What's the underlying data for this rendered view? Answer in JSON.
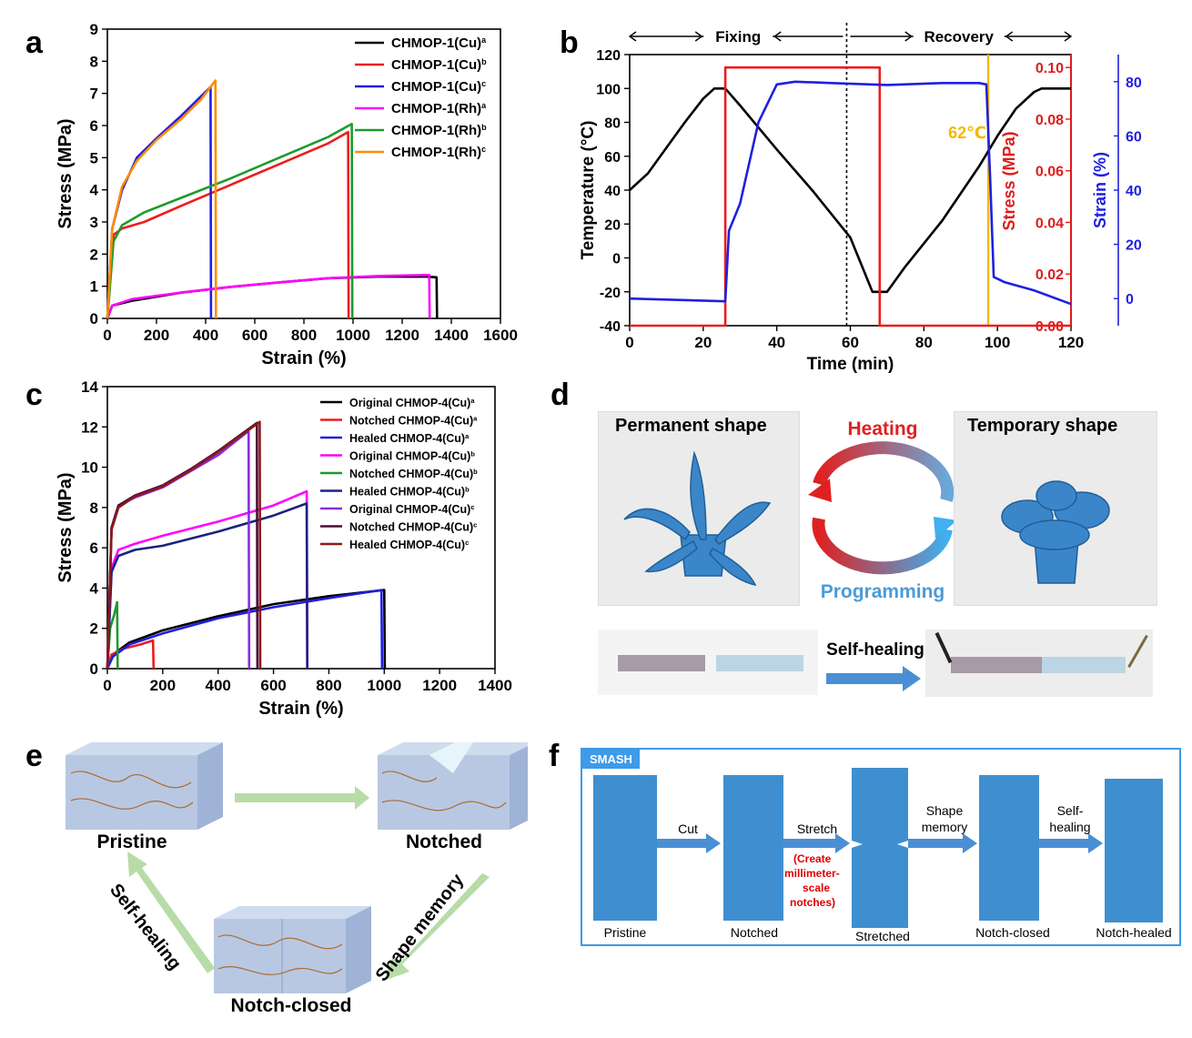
{
  "panels": {
    "a": "a",
    "b": "b",
    "c": "c",
    "d": "d",
    "e": "e",
    "f": "f"
  },
  "chart_data": [
    {
      "id": "a",
      "type": "line",
      "xlabel": "Strain (%)",
      "ylabel": "Stress (MPa)",
      "xlim": [
        0,
        1600
      ],
      "ylim": [
        0,
        9
      ],
      "xticks": [
        0,
        200,
        400,
        600,
        800,
        1000,
        1200,
        1400,
        1600
      ],
      "yticks": [
        0,
        1,
        2,
        3,
        4,
        5,
        6,
        7,
        8,
        9
      ],
      "legend_position": "top-right",
      "series": [
        {
          "name": "CHMOP-1(Cu)",
          "sup": "a",
          "color": "#000000",
          "points": [
            [
              0,
              0
            ],
            [
              20,
              0.4
            ],
            [
              100,
              0.55
            ],
            [
              300,
              0.8
            ],
            [
              500,
              0.98
            ],
            [
              700,
              1.12
            ],
            [
              900,
              1.25
            ],
            [
              1100,
              1.3
            ],
            [
              1300,
              1.3
            ],
            [
              1340,
              1.28
            ],
            [
              1342,
              0
            ]
          ]
        },
        {
          "name": "CHMOP-1(Cu)",
          "sup": "b",
          "color": "#ee1c1c",
          "points": [
            [
              0,
              0
            ],
            [
              25,
              2.6
            ],
            [
              60,
              2.8
            ],
            [
              150,
              3.0
            ],
            [
              300,
              3.5
            ],
            [
              500,
              4.15
            ],
            [
              700,
              4.8
            ],
            [
              900,
              5.45
            ],
            [
              980,
              5.8
            ],
            [
              982,
              0
            ]
          ]
        },
        {
          "name": "CHMOP-1(Cu)",
          "sup": "c",
          "color": "#1f1fe0",
          "points": [
            [
              0,
              0
            ],
            [
              20,
              2.8
            ],
            [
              60,
              4.0
            ],
            [
              120,
              5.0
            ],
            [
              200,
              5.6
            ],
            [
              300,
              6.3
            ],
            [
              380,
              6.9
            ],
            [
              420,
              7.2
            ],
            [
              422,
              0
            ]
          ]
        },
        {
          "name": "CHMOP-1(Rh)",
          "sup": "a",
          "color": "#ff00ff",
          "points": [
            [
              0,
              0
            ],
            [
              20,
              0.4
            ],
            [
              100,
              0.6
            ],
            [
              300,
              0.8
            ],
            [
              500,
              0.98
            ],
            [
              700,
              1.12
            ],
            [
              900,
              1.25
            ],
            [
              1100,
              1.32
            ],
            [
              1300,
              1.35
            ],
            [
              1310,
              1.35
            ],
            [
              1312,
              0
            ]
          ]
        },
        {
          "name": "CHMOP-1(Rh)",
          "sup": "b",
          "color": "#1e9a2e",
          "points": [
            [
              0,
              0
            ],
            [
              25,
              2.4
            ],
            [
              60,
              2.9
            ],
            [
              150,
              3.3
            ],
            [
              300,
              3.75
            ],
            [
              500,
              4.35
            ],
            [
              700,
              5.0
            ],
            [
              900,
              5.65
            ],
            [
              995,
              6.05
            ],
            [
              997,
              0
            ]
          ]
        },
        {
          "name": "CHMOP-1(Rh)",
          "sup": "c",
          "color": "#ff8c00",
          "points": [
            [
              0,
              0
            ],
            [
              20,
              2.8
            ],
            [
              60,
              4.1
            ],
            [
              120,
              4.9
            ],
            [
              200,
              5.55
            ],
            [
              300,
              6.2
            ],
            [
              380,
              6.8
            ],
            [
              440,
              7.4
            ],
            [
              442,
              0
            ]
          ]
        }
      ]
    },
    {
      "id": "b",
      "type": "line",
      "xlabel": "Time (min)",
      "ylabel": "Temperature (°C)",
      "y2label": "Stress (MPa)",
      "y3label": "Strain (%)",
      "xlim": [
        0,
        120
      ],
      "ylim": [
        -40,
        120
      ],
      "y2lim": [
        0,
        0.105
      ],
      "y3lim": [
        -10,
        90
      ],
      "xticks": [
        0,
        20,
        40,
        60,
        80,
        100,
        120
      ],
      "yticks": [
        -40,
        -20,
        0,
        20,
        40,
        60,
        80,
        100,
        120
      ],
      "y2ticks": [
        0.0,
        0.02,
        0.04,
        0.06,
        0.08,
        0.1
      ],
      "y3ticks": [
        0,
        20,
        40,
        60,
        80
      ],
      "annotations": {
        "fixing": "Fixing",
        "recovery": "Recovery",
        "temp": "62℃"
      },
      "vline_dotted_x": 59,
      "vline_recovery_x": 97.5,
      "series": [
        {
          "name": "Temperature",
          "axis": "y",
          "color": "#000000",
          "points": [
            [
              0,
              40
            ],
            [
              5,
              50
            ],
            [
              10,
              65
            ],
            [
              15,
              80
            ],
            [
              20,
              94
            ],
            [
              23,
              100
            ],
            [
              26,
              100
            ],
            [
              30,
              90
            ],
            [
              40,
              64
            ],
            [
              50,
              39
            ],
            [
              60,
              12
            ],
            [
              66,
              -20
            ],
            [
              70,
              -20
            ],
            [
              75,
              -5
            ],
            [
              85,
              22
            ],
            [
              95,
              54
            ],
            [
              100,
              72
            ],
            [
              105,
              88
            ],
            [
              110,
              98
            ],
            [
              112,
              100
            ],
            [
              120,
              100
            ]
          ]
        },
        {
          "name": "Stress",
          "axis": "y2",
          "color": "#ee1c1c",
          "points": [
            [
              0,
              0.0
            ],
            [
              26,
              0.0
            ],
            [
              26,
              0.1
            ],
            [
              68,
              0.1
            ],
            [
              68,
              0.0
            ],
            [
              120,
              0.0
            ]
          ]
        },
        {
          "name": "Strain",
          "axis": "y3",
          "color": "#1f1fe0",
          "points": [
            [
              0,
              0
            ],
            [
              26,
              -1
            ],
            [
              27,
              25
            ],
            [
              30,
              35
            ],
            [
              35,
              65
            ],
            [
              40,
              79
            ],
            [
              45,
              80
            ],
            [
              55,
              79.5
            ],
            [
              70,
              78.8
            ],
            [
              85,
              79.5
            ],
            [
              95,
              79.5
            ],
            [
              97,
              79
            ],
            [
              98,
              45
            ],
            [
              99,
              8
            ],
            [
              102,
              6
            ],
            [
              110,
              3
            ],
            [
              120,
              -2
            ]
          ]
        }
      ]
    },
    {
      "id": "c",
      "type": "line",
      "xlabel": "Strain (%)",
      "ylabel": "Stress (MPa)",
      "xlim": [
        0,
        1400
      ],
      "ylim": [
        0,
        14
      ],
      "xticks": [
        0,
        200,
        400,
        600,
        800,
        1000,
        1200,
        1400
      ],
      "yticks": [
        0,
        2,
        4,
        6,
        8,
        10,
        12,
        14
      ],
      "legend_position": "top-right",
      "series": [
        {
          "name": "Original CHMOP-4(Cu)",
          "sup": "a",
          "color": "#000000",
          "points": [
            [
              0,
              0
            ],
            [
              20,
              0.7
            ],
            [
              80,
              1.3
            ],
            [
              200,
              1.9
            ],
            [
              400,
              2.6
            ],
            [
              600,
              3.2
            ],
            [
              800,
              3.6
            ],
            [
              1000,
              3.9
            ],
            [
              1002,
              0
            ]
          ]
        },
        {
          "name": "Notched CHMOP-4(Cu)",
          "sup": "a",
          "color": "#ee1c1c",
          "points": [
            [
              0,
              0
            ],
            [
              15,
              0.7
            ],
            [
              60,
              1.0
            ],
            [
              120,
              1.2
            ],
            [
              165,
              1.4
            ],
            [
              167,
              0
            ]
          ]
        },
        {
          "name": "Healed CHMOP-4(Cu)",
          "sup": "a",
          "color": "#1f1fe0",
          "points": [
            [
              0,
              0
            ],
            [
              20,
              0.6
            ],
            [
              80,
              1.2
            ],
            [
              200,
              1.75
            ],
            [
              400,
              2.5
            ],
            [
              600,
              3.05
            ],
            [
              800,
              3.5
            ],
            [
              990,
              3.9
            ],
            [
              992,
              0
            ]
          ]
        },
        {
          "name": "Original CHMOP-4(Cu)",
          "sup": "b",
          "color": "#ff00ff",
          "points": [
            [
              0,
              0
            ],
            [
              15,
              5.0
            ],
            [
              40,
              5.9
            ],
            [
              100,
              6.2
            ],
            [
              200,
              6.6
            ],
            [
              400,
              7.3
            ],
            [
              600,
              8.1
            ],
            [
              720,
              8.8
            ],
            [
              722,
              0
            ]
          ]
        },
        {
          "name": "Notched CHMOP-4(Cu)",
          "sup": "b",
          "color": "#1e9a2e",
          "points": [
            [
              0,
              0
            ],
            [
              10,
              2.0
            ],
            [
              25,
              2.7
            ],
            [
              35,
              3.3
            ],
            [
              37,
              0
            ]
          ]
        },
        {
          "name": "Healed CHMOP-4(Cu)",
          "sup": "b",
          "color": "#1a237e",
          "points": [
            [
              0,
              0
            ],
            [
              15,
              4.8
            ],
            [
              40,
              5.6
            ],
            [
              100,
              5.9
            ],
            [
              200,
              6.1
            ],
            [
              400,
              6.8
            ],
            [
              600,
              7.6
            ],
            [
              720,
              8.2
            ],
            [
              722,
              0
            ]
          ]
        },
        {
          "name": "Original CHMOP-4(Cu)",
          "sup": "c",
          "color": "#8a2be2",
          "points": [
            [
              0,
              0
            ],
            [
              15,
              7.0
            ],
            [
              40,
              8.1
            ],
            [
              100,
              8.5
            ],
            [
              200,
              9.0
            ],
            [
              300,
              9.8
            ],
            [
              400,
              10.6
            ],
            [
              510,
              11.8
            ],
            [
              512,
              0
            ]
          ]
        },
        {
          "name": "Notched CHMOP-4(Cu)",
          "sup": "c",
          "color": "#4b0a3c",
          "points": [
            [
              0,
              0
            ],
            [
              15,
              7.0
            ],
            [
              40,
              8.1
            ],
            [
              100,
              8.6
            ],
            [
              200,
              9.1
            ],
            [
              300,
              9.9
            ],
            [
              400,
              10.8
            ],
            [
              540,
              12.2
            ],
            [
              542,
              0
            ]
          ]
        },
        {
          "name": "Healed CHMOP-4(Cu)",
          "sup": "c",
          "color": "#8b1a1a",
          "points": [
            [
              0,
              0
            ],
            [
              15,
              6.9
            ],
            [
              40,
              8.0
            ],
            [
              100,
              8.55
            ],
            [
              200,
              9.05
            ],
            [
              300,
              9.85
            ],
            [
              400,
              10.75
            ],
            [
              550,
              12.25
            ],
            [
              552,
              0
            ]
          ]
        }
      ]
    }
  ],
  "panel_d": {
    "permanent": "Permanent shape",
    "temporary": "Temporary shape",
    "heating": "Heating",
    "programming": "Programming",
    "self_healing": "Self-healing"
  },
  "panel_e": {
    "pristine": "Pristine",
    "notched": "Notched",
    "notch_closed": "Notch-closed",
    "self_healing": "Self-healing",
    "shape_memory": "Shape memory"
  },
  "panel_f": {
    "tag": "SMASH",
    "cut": "Cut",
    "stretch": "Stretch",
    "stretch_note": [
      "(Create",
      "millimeter-",
      "scale",
      "notches)"
    ],
    "shape_memory": [
      "Shape",
      "memory"
    ],
    "self_healing": [
      "Self-",
      "healing"
    ],
    "labels": [
      "Pristine",
      "Notched",
      "Stretched",
      "Notch-closed",
      "Notch-healed"
    ]
  },
  "colors": {
    "photo_bg": "#ebebeb",
    "gel_blue": "#3f8fd0",
    "arrow_blue": "#4a8fd4",
    "arrow_green": "#b8dca8",
    "heating": "#e02020",
    "programming": "#4a9bd8",
    "temp_line": "#f5b800",
    "f_border": "#3d9be8"
  }
}
